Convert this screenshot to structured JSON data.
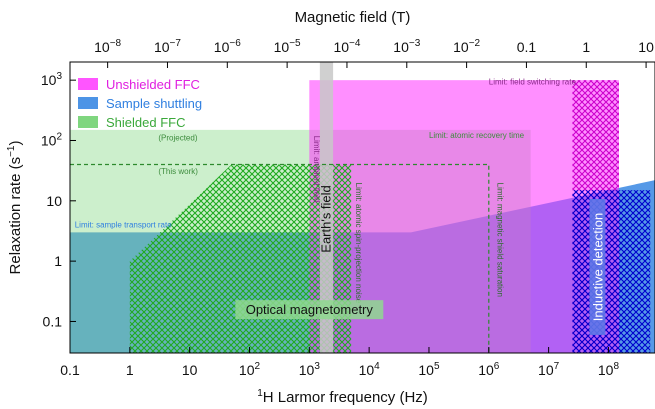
{
  "chart_data": {
    "type": "area",
    "title": "",
    "xlabel_sup": "1",
    "xlabel_main": "H Larmor frequency (Hz)",
    "top_xlabel": "Magnetic field (T)",
    "ylabel": "Relaxation rate (s",
    "ylabel_sup": "−1",
    "ylabel_end": ")",
    "x_scale": "log",
    "y_scale": "log",
    "xlim": [
      0.1,
      600000000
    ],
    "ylim": [
      0.03,
      2000
    ],
    "x_ticks": [
      {
        "value": 0.1,
        "label": "0.1"
      },
      {
        "value": 1,
        "label": "1"
      },
      {
        "value": 10,
        "label": "10"
      },
      {
        "value": 100,
        "base": "10",
        "exp": "2"
      },
      {
        "value": 1000,
        "base": "10",
        "exp": "3"
      },
      {
        "value": 10000,
        "base": "10",
        "exp": "4"
      },
      {
        "value": 100000,
        "base": "10",
        "exp": "5"
      },
      {
        "value": 1000000,
        "base": "10",
        "exp": "6"
      },
      {
        "value": 10000000,
        "base": "10",
        "exp": "7"
      },
      {
        "value": 100000000,
        "base": "10",
        "exp": "8"
      }
    ],
    "top_ticks": [
      {
        "field_T": 1e-08,
        "base": "10",
        "exp": "−8"
      },
      {
        "field_T": 1e-07,
        "base": "10",
        "exp": "−7"
      },
      {
        "field_T": 1e-06,
        "base": "10",
        "exp": "−6"
      },
      {
        "field_T": 1e-05,
        "base": "10",
        "exp": "−5"
      },
      {
        "field_T": 0.0001,
        "base": "10",
        "exp": "−4"
      },
      {
        "field_T": 0.001,
        "base": "10",
        "exp": "−3"
      },
      {
        "field_T": 0.01,
        "base": "10",
        "exp": "−2"
      },
      {
        "field_T": 0.1,
        "label": "0.1"
      },
      {
        "field_T": 1,
        "label": "1"
      },
      {
        "field_T": 10,
        "label": "10"
      }
    ],
    "hz_per_tesla": 42577000,
    "y_ticks": [
      {
        "value": 0.1,
        "label": "0.1"
      },
      {
        "value": 1,
        "label": "1"
      },
      {
        "value": 10,
        "label": "10"
      },
      {
        "value": 100,
        "base": "10",
        "exp": "2"
      },
      {
        "value": 1000,
        "base": "10",
        "exp": "3"
      }
    ],
    "legend": [
      {
        "name": "Unshielded FFC",
        "color": "#ff55ff",
        "text_color": "#e020e0"
      },
      {
        "name": "Sample shuttling",
        "color": "#4d94e6",
        "text_color": "#2f7fe0"
      },
      {
        "name": "Shielded FFC",
        "color": "#7fd67f",
        "text_color": "#3aa83a"
      }
    ],
    "colors": {
      "shuttling": "#4d94e6",
      "unshielded": "#ff55ff",
      "shielded": "#7fd67f",
      "hatch_green": "#1faa1f",
      "hatch_blue": "#0000cc",
      "hatch_magenta": "#cc00cc",
      "earth_band": "#c8c8c8"
    },
    "regions": {
      "shuttling_outline": [
        [
          0.1,
          0.03
        ],
        [
          0.1,
          3
        ],
        [
          50000,
          3
        ],
        [
          600000000,
          22
        ],
        [
          600000000,
          0.03
        ]
      ],
      "unshielded_rect": {
        "x": [
          1000,
          150000000
        ],
        "y": [
          0.03,
          1000
        ]
      },
      "shielded_rect": {
        "x": [
          0.1,
          5000000
        ],
        "y": [
          0.03,
          150
        ]
      },
      "green_hatch": [
        [
          1,
          0.03
        ],
        [
          1,
          1
        ],
        [
          50,
          40
        ],
        [
          5000,
          40
        ],
        [
          5000,
          0.03
        ]
      ],
      "blue_hatch": {
        "x": [
          25000000,
          500000000
        ],
        "y": [
          0.03,
          15
        ]
      },
      "magenta_hatch": {
        "x": [
          25000000,
          150000000
        ],
        "y": [
          0.03,
          1000
        ]
      },
      "this_work_box": {
        "x": [
          0.1,
          1000000
        ],
        "y": [
          0.03,
          40
        ]
      },
      "earth_band": {
        "x": [
          1500,
          2500
        ],
        "y": [
          0.03,
          2000
        ]
      }
    },
    "annotations": [
      {
        "id": "ann-field-switching",
        "text": "Limit: field switching rate",
        "x": 1000000,
        "y": 850,
        "rotate": 0,
        "color": "#8a2a8a"
      },
      {
        "id": "ann-atomic-recovery",
        "text": "Limit: atomic recovery time",
        "x": 100000,
        "y": 110,
        "rotate": 0,
        "color": "#3d8c3d"
      },
      {
        "id": "ann-projected",
        "text": "(Projected)",
        "x": 3,
        "y": 100,
        "rotate": 0,
        "color": "#3d8c3d"
      },
      {
        "id": "ann-this-work",
        "text": "(This work)",
        "x": 3,
        "y": 28,
        "rotate": 0,
        "color": "#3d8c3d"
      },
      {
        "id": "ann-sample-transport",
        "text": "Limit: sample transport rate",
        "x": 0.12,
        "y": 3.6,
        "rotate": 0,
        "color": "#2f7fe0"
      },
      {
        "id": "ann-ambient-field",
        "text": "Limit: ambient field",
        "x": 1200,
        "y": 120,
        "rotate": 90,
        "color": "#8a2a8a"
      },
      {
        "id": "ann-atomic-spin",
        "text": "Limit: atomic spin-projection noise",
        "x": 6000,
        "y": 20,
        "rotate": 90,
        "color": "#2d6e2d"
      },
      {
        "id": "ann-magnetic-shield",
        "text": "Limit: magnetic shield saturation",
        "x": 1400000,
        "y": 20,
        "rotate": 90,
        "color": "#2d6e2d"
      }
    ],
    "labels": {
      "earth": "Earth's field",
      "optical": "Optical magnetometry",
      "inductive": "Inductive detection"
    }
  }
}
